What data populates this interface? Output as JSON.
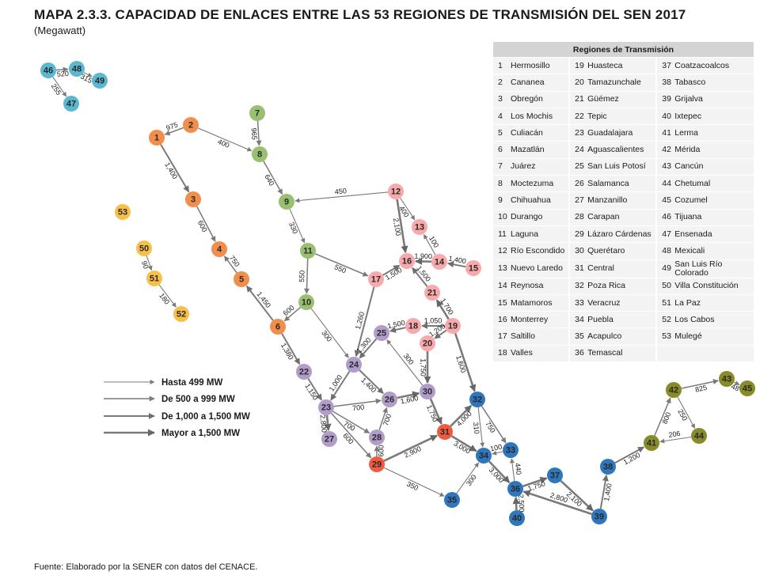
{
  "title": "MAPA 2.3.3. CAPACIDAD DE ENLACES ENTRE LAS 53 REGIONES DE TRANSMISIÓN DEL SEN 2017",
  "subtitle": "(Megawatt)",
  "footer": "Fuente: Elaborado por la SENER con datos del CENACE.",
  "colors": {
    "noroeste": "#f18e4c",
    "norte": "#99c070",
    "noreste": "#f7a9ac",
    "occidental": "#b09dc9",
    "central": "#ef5a40",
    "oriental": "#2f77bd",
    "peninsular": "#878b28",
    "baja_california": "#5bb8d0",
    "bcs": "#f8c04a",
    "line": "#7a7a7a"
  },
  "legend": {
    "header": "Regiones de Transmisión",
    "rows": [
      [
        {
          "n": "1",
          "name": "Hermosillo"
        },
        {
          "n": "19",
          "name": "Huasteca"
        },
        {
          "n": "37",
          "name": "Coatzacoalcos"
        }
      ],
      [
        {
          "n": "2",
          "name": "Cananea"
        },
        {
          "n": "20",
          "name": "Tamazunchale"
        },
        {
          "n": "38",
          "name": "Tabasco"
        }
      ],
      [
        {
          "n": "3",
          "name": "Obregón"
        },
        {
          "n": "21",
          "name": "Güémez"
        },
        {
          "n": "39",
          "name": "Grijalva"
        }
      ],
      [
        {
          "n": "4",
          "name": "Los Mochis"
        },
        {
          "n": "22",
          "name": "Tepic"
        },
        {
          "n": "40",
          "name": "Ixtepec"
        }
      ],
      [
        {
          "n": "5",
          "name": "Culiacán"
        },
        {
          "n": "23",
          "name": "Guadalajara"
        },
        {
          "n": "41",
          "name": "Lerma"
        }
      ],
      [
        {
          "n": "6",
          "name": "Mazatlán"
        },
        {
          "n": "24",
          "name": "Aguascalientes"
        },
        {
          "n": "42",
          "name": "Mérida"
        }
      ],
      [
        {
          "n": "7",
          "name": "Juárez"
        },
        {
          "n": "25",
          "name": "San Luis Potosí"
        },
        {
          "n": "43",
          "name": "Cancún"
        }
      ],
      [
        {
          "n": "8",
          "name": "Moctezuma"
        },
        {
          "n": "26",
          "name": "Salamanca"
        },
        {
          "n": "44",
          "name": "Chetumal"
        }
      ],
      [
        {
          "n": "9",
          "name": "Chihuahua"
        },
        {
          "n": "27",
          "name": "Manzanillo"
        },
        {
          "n": "45",
          "name": "Cozumel"
        }
      ],
      [
        {
          "n": "10",
          "name": "Durango"
        },
        {
          "n": "28",
          "name": "Carapan"
        },
        {
          "n": "46",
          "name": "Tijuana"
        }
      ],
      [
        {
          "n": "11",
          "name": "Laguna"
        },
        {
          "n": "29",
          "name": "Lázaro Cárdenas"
        },
        {
          "n": "47",
          "name": "Ensenada"
        }
      ],
      [
        {
          "n": "12",
          "name": "Río Escondido"
        },
        {
          "n": "30",
          "name": "Querétaro"
        },
        {
          "n": "48",
          "name": "Mexicali"
        }
      ],
      [
        {
          "n": "13",
          "name": "Nuevo Laredo"
        },
        {
          "n": "31",
          "name": "Central"
        },
        {
          "n": "49",
          "name": "San Luis Río Colorado"
        }
      ],
      [
        {
          "n": "14",
          "name": "Reynosa"
        },
        {
          "n": "32",
          "name": "Poza Rica"
        },
        {
          "n": "50",
          "name": "Villa Constitución"
        }
      ],
      [
        {
          "n": "15",
          "name": "Matamoros"
        },
        {
          "n": "33",
          "name": "Veracruz"
        },
        {
          "n": "51",
          "name": "La Paz"
        }
      ],
      [
        {
          "n": "16",
          "name": "Monterrey"
        },
        {
          "n": "34",
          "name": "Puebla"
        },
        {
          "n": "52",
          "name": "Los Cabos"
        }
      ],
      [
        {
          "n": "17",
          "name": "Saltillo"
        },
        {
          "n": "35",
          "name": "Acapulco"
        },
        {
          "n": "53",
          "name": "Mulegé"
        }
      ],
      [
        {
          "n": "18",
          "name": "Valles"
        },
        {
          "n": "36",
          "name": "Temascal"
        },
        {
          "n": "",
          "name": ""
        }
      ]
    ]
  },
  "capacity_legend": [
    {
      "label": "Hasta 499 MW",
      "tier": 1
    },
    {
      "label": "De 500 a 999 MW",
      "tier": 2
    },
    {
      "label": "De 1,000 a 1,500 MW",
      "tier": 3
    },
    {
      "label": "Mayor a 1,500 MW",
      "tier": 4
    }
  ],
  "nodes": [
    {
      "id": "1",
      "group": "noroeste"
    },
    {
      "id": "2",
      "group": "noroeste"
    },
    {
      "id": "3",
      "group": "noroeste"
    },
    {
      "id": "4",
      "group": "noroeste"
    },
    {
      "id": "5",
      "group": "noroeste"
    },
    {
      "id": "6",
      "group": "noroeste"
    },
    {
      "id": "7",
      "group": "norte"
    },
    {
      "id": "8",
      "group": "norte"
    },
    {
      "id": "9",
      "group": "norte"
    },
    {
      "id": "10",
      "group": "norte"
    },
    {
      "id": "11",
      "group": "norte"
    },
    {
      "id": "12",
      "group": "noreste"
    },
    {
      "id": "13",
      "group": "noreste"
    },
    {
      "id": "14",
      "group": "noreste"
    },
    {
      "id": "15",
      "group": "noreste"
    },
    {
      "id": "16",
      "group": "noreste"
    },
    {
      "id": "17",
      "group": "noreste"
    },
    {
      "id": "18",
      "group": "noreste"
    },
    {
      "id": "19",
      "group": "noreste"
    },
    {
      "id": "20",
      "group": "noreste"
    },
    {
      "id": "21",
      "group": "noreste"
    },
    {
      "id": "22",
      "group": "occidental"
    },
    {
      "id": "23",
      "group": "occidental"
    },
    {
      "id": "24",
      "group": "occidental"
    },
    {
      "id": "25",
      "group": "occidental"
    },
    {
      "id": "26",
      "group": "occidental"
    },
    {
      "id": "27",
      "group": "occidental"
    },
    {
      "id": "28",
      "group": "occidental"
    },
    {
      "id": "30",
      "group": "occidental"
    },
    {
      "id": "29",
      "group": "central"
    },
    {
      "id": "31",
      "group": "central"
    },
    {
      "id": "32",
      "group": "oriental"
    },
    {
      "id": "33",
      "group": "oriental"
    },
    {
      "id": "34",
      "group": "oriental"
    },
    {
      "id": "35",
      "group": "oriental"
    },
    {
      "id": "36",
      "group": "oriental"
    },
    {
      "id": "37",
      "group": "oriental"
    },
    {
      "id": "38",
      "group": "oriental"
    },
    {
      "id": "39",
      "group": "oriental"
    },
    {
      "id": "40",
      "group": "oriental"
    },
    {
      "id": "41",
      "group": "peninsular"
    },
    {
      "id": "42",
      "group": "peninsular"
    },
    {
      "id": "43",
      "group": "peninsular"
    },
    {
      "id": "44",
      "group": "peninsular"
    },
    {
      "id": "45",
      "group": "peninsular"
    },
    {
      "id": "46",
      "group": "baja_california"
    },
    {
      "id": "47",
      "group": "baja_california"
    },
    {
      "id": "48",
      "group": "baja_california"
    },
    {
      "id": "49",
      "group": "baja_california"
    },
    {
      "id": "50",
      "group": "bcs"
    },
    {
      "id": "51",
      "group": "bcs"
    },
    {
      "id": "52",
      "group": "bcs"
    },
    {
      "id": "53",
      "group": "bcs"
    }
  ],
  "links": [
    {
      "from": "2",
      "to": "1",
      "label": "975",
      "tier": 2
    },
    {
      "from": "2",
      "to": "8",
      "label": "400",
      "tier": 1
    },
    {
      "from": "1",
      "to": "3",
      "label": "1,400",
      "tier": 3
    },
    {
      "from": "3",
      "to": "4",
      "label": "600",
      "tier": 2
    },
    {
      "from": "5",
      "to": "4",
      "label": "750",
      "tier": 2
    },
    {
      "from": "6",
      "to": "5",
      "label": "1,450",
      "tier": 3
    },
    {
      "from": "7",
      "to": "8",
      "label": "965",
      "tier": 2
    },
    {
      "from": "8",
      "to": "9",
      "label": "640",
      "tier": 2
    },
    {
      "from": "12",
      "to": "9",
      "label": "450",
      "tier": 1
    },
    {
      "from": "9",
      "to": "11",
      "label": "330",
      "tier": 1
    },
    {
      "from": "11",
      "to": "10",
      "label": "550",
      "tier": 2
    },
    {
      "from": "11",
      "to": "17",
      "label": "550",
      "tier": 2
    },
    {
      "from": "10",
      "to": "6",
      "label": "600",
      "tier": 2
    },
    {
      "from": "10",
      "to": "24",
      "label": "300",
      "tier": 1
    },
    {
      "from": "6",
      "to": "22",
      "label": "1,380",
      "tier": 3
    },
    {
      "from": "22",
      "to": "23",
      "label": "1,150",
      "tier": 3
    },
    {
      "from": "12",
      "to": "13",
      "label": "400",
      "tier": 1
    },
    {
      "from": "12",
      "to": "16",
      "label": "2,100",
      "tier": 4
    },
    {
      "from": "14",
      "to": "13",
      "label": "100",
      "tier": 1
    },
    {
      "from": "14",
      "to": "16",
      "label": "1,900",
      "tier": 4
    },
    {
      "from": "15",
      "to": "14",
      "label": "1,400",
      "tier": 3
    },
    {
      "from": "17",
      "to": "16",
      "label": "1,500",
      "tier": 3
    },
    {
      "from": "21",
      "to": "16",
      "label": "1,500",
      "tier": 3
    },
    {
      "from": "19",
      "to": "21",
      "label": "1,700",
      "tier": 4
    },
    {
      "from": "17",
      "to": "24",
      "label": "1,260",
      "tier": 3
    },
    {
      "from": "19",
      "to": "18",
      "label": "1,050",
      "tier": 3
    },
    {
      "from": "19",
      "to": "20",
      "label": "1,200",
      "tier": 3
    },
    {
      "from": "19",
      "to": "32",
      "label": "1,600",
      "tier": 4
    },
    {
      "from": "18",
      "to": "25",
      "label": "1,500",
      "tier": 3
    },
    {
      "from": "25",
      "to": "24",
      "label": "1,300",
      "tier": 3
    },
    {
      "from": "30",
      "to": "25",
      "label": "300",
      "tier": 1
    },
    {
      "from": "20",
      "to": "30",
      "label": "1,750",
      "tier": 4
    },
    {
      "from": "24",
      "to": "23",
      "label": "1,000",
      "tier": 3
    },
    {
      "from": "24",
      "to": "26",
      "label": "1,400",
      "tier": 3
    },
    {
      "from": "23",
      "to": "26",
      "label": "700",
      "tier": 2
    },
    {
      "from": "26",
      "to": "30",
      "label": "1,600",
      "tier": 4
    },
    {
      "from": "23",
      "to": "28",
      "label": "700",
      "tier": 2
    },
    {
      "from": "28",
      "to": "26",
      "label": "700",
      "tier": 2
    },
    {
      "from": "23",
      "to": "27",
      "label": "2,800",
      "tier": 4
    },
    {
      "from": "23",
      "to": "29",
      "label": "600",
      "tier": 2
    },
    {
      "from": "29",
      "to": "28",
      "label": "600",
      "tier": 2
    },
    {
      "from": "30",
      "to": "31",
      "label": "1,750",
      "tier": 4
    },
    {
      "from": "29",
      "to": "31",
      "label": "2,900",
      "tier": 4
    },
    {
      "from": "29",
      "to": "35",
      "label": "350",
      "tier": 1
    },
    {
      "from": "31",
      "to": "32",
      "label": "4,000",
      "tier": 4
    },
    {
      "from": "32",
      "to": "34",
      "label": "310",
      "tier": 1
    },
    {
      "from": "32",
      "to": "33",
      "label": "750",
      "tier": 2
    },
    {
      "from": "33",
      "to": "34",
      "label": "100",
      "tier": 1
    },
    {
      "from": "31",
      "to": "34",
      "label": "3,000",
      "tier": 4
    },
    {
      "from": "35",
      "to": "34",
      "label": "300",
      "tier": 1
    },
    {
      "from": "36",
      "to": "33",
      "label": "440",
      "tier": 1
    },
    {
      "from": "34",
      "to": "36",
      "label": "3,000",
      "tier": 4
    },
    {
      "from": "36",
      "to": "37",
      "label": "1,750",
      "tier": 4
    },
    {
      "from": "40",
      "to": "36",
      "label": "2,500",
      "tier": 4
    },
    {
      "from": "39",
      "to": "36",
      "label": "2,800",
      "tier": 4
    },
    {
      "from": "37",
      "to": "39",
      "label": "2,100",
      "tier": 4
    },
    {
      "from": "39",
      "to": "38",
      "label": "1,400",
      "tier": 3
    },
    {
      "from": "38",
      "to": "41",
      "label": "1,200",
      "tier": 3
    },
    {
      "from": "41",
      "to": "42",
      "label": "800",
      "tier": 2
    },
    {
      "from": "42",
      "to": "43",
      "label": "825",
      "tier": 2
    },
    {
      "from": "43",
      "to": "45",
      "label": "48",
      "tier": 1
    },
    {
      "from": "42",
      "to": "44",
      "label": "250",
      "tier": 1
    },
    {
      "from": "44",
      "to": "41",
      "label": "206",
      "tier": 1
    },
    {
      "from": "46",
      "to": "48",
      "label": "520",
      "tier": 2
    },
    {
      "from": "48",
      "to": "49",
      "label": "315",
      "tier": 1
    },
    {
      "from": "46",
      "to": "47",
      "label": "255",
      "tier": 1
    },
    {
      "from": "50",
      "to": "51",
      "label": "90",
      "tier": 1
    },
    {
      "from": "51",
      "to": "52",
      "label": "180",
      "tier": 1
    }
  ]
}
